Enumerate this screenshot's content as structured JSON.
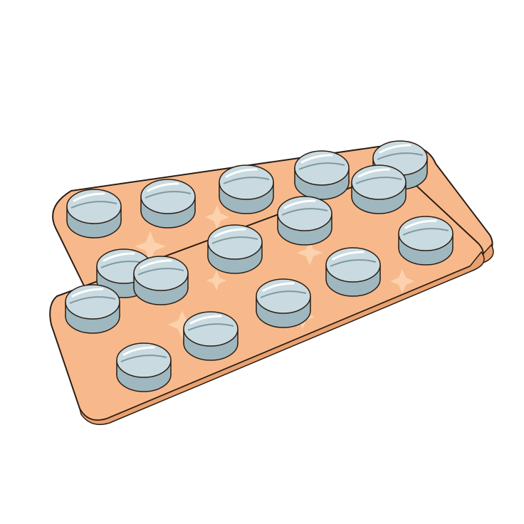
{
  "illustration": {
    "subject": "pill-blister-packs",
    "blister_packs": 2,
    "colors": {
      "background": "#ffffff",
      "foil": "#f7b98b",
      "foil_light": "#fcd2ae",
      "foil_shadow": "#e9a16f",
      "outline": "#2b1d16",
      "pill_top": "#c9dbe0",
      "pill_side": "#9fb7bf",
      "pill_dark": "#7f98a1",
      "highlight": "#ffffff"
    }
  }
}
